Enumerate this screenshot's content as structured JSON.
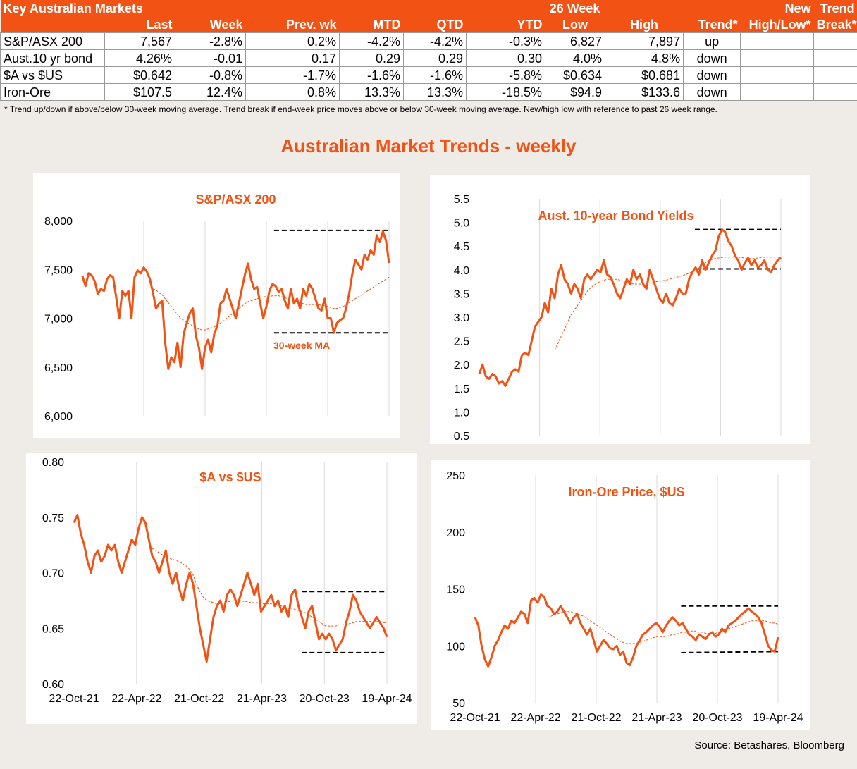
{
  "table": {
    "title": "Key Australian Markets",
    "header2": "26 Week",
    "columns": [
      "Last",
      "Week",
      "Prev. wk",
      "MTD",
      "QTD",
      "YTD",
      "Low",
      "High",
      "Trend*"
    ],
    "new_col": [
      "New",
      "High/Low*"
    ],
    "trend_col": [
      "Trend",
      "Break*"
    ],
    "rows": [
      {
        "name": "S&P/ASX 200",
        "last": "7,567",
        "week": "-2.8%",
        "prev": "0.2%",
        "mtd": "-4.2%",
        "qtd": "-4.2%",
        "ytd": "-0.3%",
        "low": "6,827",
        "high": "7,897",
        "trend": "up",
        "newhl": "",
        "brk": ""
      },
      {
        "name": "Aust.10 yr bond",
        "last": "4.26%",
        "week": "-0.01",
        "prev": "0.17",
        "mtd": "0.29",
        "qtd": "0.29",
        "ytd": "0.30",
        "low": "4.0%",
        "high": "4.8%",
        "trend": "down",
        "newhl": "",
        "brk": ""
      },
      {
        "name": "$A vs $US",
        "last": "$0.642",
        "week": "-0.8%",
        "prev": "-1.7%",
        "mtd": "-1.6%",
        "qtd": "-1.6%",
        "ytd": "-5.8%",
        "low": "$0.634",
        "high": "$0.681",
        "trend": "down",
        "newhl": "",
        "brk": ""
      },
      {
        "name": "Iron-Ore",
        "last": "$107.5",
        "week": "12.4%",
        "prev": "0.8%",
        "mtd": "13.3%",
        "qtd": "13.3%",
        "ytd": "-18.5%",
        "low": "$94.9",
        "high": "$133.6",
        "trend": "down",
        "newhl": "",
        "brk": ""
      }
    ],
    "footnote": "*  Trend up/down if above/below 30-week moving average. Trend break if end-week price moves above or below 30-week moving average.  New/high low with reference to past 26 week range."
  },
  "main_title": "Australian Market Trends - weekly",
  "source": "Source:  Betashares, Bloomberg",
  "colors": {
    "accent": "#f25213",
    "line": "#f25213",
    "band": "#000000"
  },
  "chart_data": [
    {
      "id": "asx",
      "type": "line",
      "title": "S&P/ASX 200",
      "annotation": "30-week MA",
      "ylim": [
        6000,
        8000
      ],
      "yticks": [
        "6,000",
        "6,500",
        "7,000",
        "7,500",
        "8,000"
      ],
      "band": [
        6850,
        7900
      ],
      "series": [
        {
          "values": [
            7430,
            7330,
            7460,
            7440,
            7380,
            7250,
            7300,
            7280,
            7400,
            7440,
            7420,
            7220,
            7000,
            7280,
            7230,
            7280,
            7000,
            7420,
            7490,
            7460,
            7520,
            7480,
            7400,
            7260,
            7100,
            7150,
            7180,
            6750,
            6480,
            6600,
            6550,
            6750,
            6500,
            6840,
            6950,
            7050,
            7100,
            6820,
            6700,
            6480,
            6700,
            6780,
            6650,
            6840,
            6920,
            7150,
            7180,
            7300,
            7200,
            7100,
            7000,
            7150,
            7300,
            7450,
            7560,
            7400,
            7300,
            7320,
            7150,
            7000,
            7120,
            7280,
            7350,
            7330,
            7270,
            7300,
            7180,
            7100,
            7300,
            7150,
            7200,
            7100,
            7300,
            7230,
            7350,
            7300,
            7200,
            7100,
            7080,
            7200,
            7000,
            7000,
            6850,
            6950,
            6980,
            7000,
            7100,
            7250,
            7450,
            7600,
            7550,
            7500,
            7650,
            7600,
            7700,
            7650,
            7850,
            7780,
            7890,
            7800,
            7567
          ]
        },
        {
          "values": [
            null,
            null,
            null,
            null,
            null,
            null,
            null,
            null,
            null,
            null,
            null,
            null,
            null,
            null,
            null,
            null,
            null,
            null,
            null,
            null,
            null,
            null,
            null,
            7300,
            7290,
            7260,
            7240,
            7200,
            7160,
            7120,
            7080,
            7040,
            7000,
            6980,
            6960,
            6940,
            6920,
            6900,
            6890,
            6880,
            6880,
            6890,
            6900,
            6910,
            6930,
            6950,
            6970,
            7000,
            7020,
            7050,
            7080,
            7100,
            7120,
            7150,
            7170,
            7180,
            7190,
            7200,
            7210,
            7220,
            7220,
            7220,
            7230,
            7230,
            7230,
            7220,
            7210,
            7200,
            7190,
            7180,
            7170,
            7160,
            7150,
            7140,
            7140,
            7140,
            7140,
            7140,
            7130,
            7130,
            7120,
            7110,
            7100,
            7100,
            7110,
            7120,
            7140,
            7160,
            7180,
            7200,
            7220,
            7240,
            7260,
            7280,
            7300,
            7320,
            7340,
            7360,
            7380,
            7400,
            7420
          ]
        }
      ]
    },
    {
      "id": "bond",
      "type": "line",
      "title": "Aust. 10-year Bond Yields",
      "ylim": [
        0.5,
        5.5
      ],
      "yticks": [
        "0.5",
        "1.0",
        "1.5",
        "2.0",
        "2.5",
        "3.0",
        "3.5",
        "4.0",
        "4.5",
        "5.0",
        "5.5"
      ],
      "band": [
        4.02,
        4.85
      ],
      "series": [
        {
          "values": [
            1.8,
            2.0,
            1.75,
            1.7,
            1.8,
            1.75,
            1.6,
            1.65,
            1.55,
            1.7,
            1.85,
            1.9,
            1.85,
            2.2,
            2.25,
            2.2,
            2.5,
            2.8,
            2.9,
            3.0,
            3.3,
            3.1,
            3.6,
            3.4,
            3.9,
            4.1,
            3.8,
            3.7,
            3.5,
            3.7,
            3.6,
            3.4,
            3.8,
            3.9,
            3.8,
            3.9,
            4.0,
            3.95,
            4.2,
            3.9,
            3.85,
            3.7,
            3.5,
            3.4,
            3.6,
            3.8,
            3.7,
            4.0,
            3.8,
            3.9,
            3.7,
            3.6,
            4.0,
            3.8,
            3.6,
            3.4,
            3.3,
            3.5,
            3.3,
            3.25,
            3.4,
            3.6,
            3.5,
            3.5,
            3.8,
            3.95,
            4.05,
            3.9,
            4.2,
            4.0,
            4.15,
            4.3,
            4.4,
            4.7,
            4.85,
            4.8,
            4.6,
            4.5,
            4.3,
            4.2,
            4.0,
            4.15,
            4.25,
            4.1,
            4.2,
            4.05,
            4.1,
            4.2,
            4.0,
            3.95,
            4.1,
            4.2,
            4.26
          ]
        },
        {
          "values": [
            null,
            null,
            null,
            null,
            null,
            null,
            null,
            null,
            null,
            null,
            null,
            null,
            null,
            null,
            null,
            null,
            null,
            null,
            null,
            null,
            null,
            null,
            null,
            2.3,
            2.45,
            2.6,
            2.75,
            2.9,
            3.05,
            3.15,
            3.25,
            3.35,
            3.45,
            3.55,
            3.62,
            3.68,
            3.72,
            3.76,
            3.78,
            3.8,
            3.8,
            3.8,
            3.8,
            3.78,
            3.76,
            3.74,
            3.72,
            3.7,
            3.7,
            3.7,
            3.7,
            3.7,
            3.72,
            3.74,
            3.75,
            3.76,
            3.77,
            3.78,
            3.8,
            3.82,
            3.84,
            3.86,
            3.88,
            3.9,
            3.93,
            3.96,
            4.0,
            4.05,
            4.1,
            4.15,
            4.2,
            4.22,
            4.24,
            4.25,
            4.26,
            4.27,
            4.27,
            4.27,
            4.27,
            4.27,
            4.26,
            4.25,
            4.24,
            4.24,
            4.24,
            4.25,
            4.26,
            4.27,
            4.27,
            4.27,
            4.27,
            4.27,
            4.26
          ]
        }
      ]
    },
    {
      "id": "aud",
      "type": "line",
      "title": "$A vs $US",
      "ylim": [
        0.6,
        0.8
      ],
      "yticks": [
        "0.60",
        "0.65",
        "0.70",
        "0.75",
        "0.80"
      ],
      "xticks": [
        "22-Oct-21",
        "22-Apr-22",
        "21-Oct-22",
        "21-Apr-23",
        "20-Oct-23",
        "19-Apr-24"
      ],
      "band": [
        0.628,
        0.683
      ],
      "series": [
        {
          "values": [
            0.745,
            0.752,
            0.735,
            0.725,
            0.71,
            0.7,
            0.715,
            0.72,
            0.71,
            0.715,
            0.725,
            0.72,
            0.725,
            0.71,
            0.7,
            0.71,
            0.72,
            0.73,
            0.725,
            0.74,
            0.75,
            0.745,
            0.73,
            0.715,
            0.71,
            0.7,
            0.71,
            0.72,
            0.7,
            0.69,
            0.7,
            0.685,
            0.675,
            0.69,
            0.7,
            0.69,
            0.67,
            0.65,
            0.635,
            0.62,
            0.64,
            0.66,
            0.67,
            0.675,
            0.665,
            0.68,
            0.685,
            0.68,
            0.67,
            0.68,
            0.69,
            0.7,
            0.69,
            0.68,
            0.69,
            0.665,
            0.67,
            0.675,
            0.68,
            0.67,
            0.675,
            0.665,
            0.67,
            0.66,
            0.68,
            0.685,
            0.67,
            0.66,
            0.65,
            0.665,
            0.67,
            0.655,
            0.64,
            0.645,
            0.64,
            0.645,
            0.64,
            0.63,
            0.635,
            0.64,
            0.655,
            0.665,
            0.68,
            0.675,
            0.665,
            0.66,
            0.655,
            0.65,
            0.655,
            0.66,
            0.655,
            0.65,
            0.642
          ]
        },
        {
          "values": [
            null,
            null,
            null,
            null,
            null,
            null,
            null,
            null,
            null,
            null,
            null,
            null,
            null,
            null,
            null,
            null,
            null,
            null,
            null,
            null,
            null,
            null,
            0.724,
            0.722,
            0.72,
            0.718,
            0.716,
            0.714,
            0.713,
            0.712,
            0.711,
            0.71,
            0.708,
            0.706,
            0.703,
            0.698,
            0.69,
            0.683,
            0.678,
            0.675,
            0.674,
            0.673,
            0.672,
            0.672,
            0.673,
            0.674,
            0.674,
            0.675,
            0.675,
            0.675,
            0.674,
            0.674,
            0.673,
            0.673,
            0.673,
            0.672,
            0.672,
            0.672,
            0.672,
            0.671,
            0.671,
            0.67,
            0.669,
            0.668,
            0.668,
            0.667,
            0.666,
            0.665,
            0.664,
            0.662,
            0.66,
            0.658,
            0.656,
            0.654,
            0.652,
            0.652,
            0.652,
            0.652,
            0.653,
            0.653,
            0.654,
            0.654,
            0.655,
            0.656,
            0.656,
            0.656,
            0.656,
            0.656,
            0.656,
            0.656,
            0.656,
            0.655,
            0.655
          ]
        }
      ]
    },
    {
      "id": "iron",
      "type": "line",
      "title": "Iron-Ore Price, $US",
      "ylim": [
        50,
        250
      ],
      "yticks": [
        "50",
        "100",
        "150",
        "200",
        "250"
      ],
      "xticks": [
        "22-Oct-21",
        "22-Apr-22",
        "21-Oct-22",
        "21-Apr-23",
        "20-Oct-23",
        "19-Apr-24"
      ],
      "band_low": [
        94,
        95
      ],
      "band_high": [
        135,
        135
      ],
      "series": [
        {
          "values": [
            125,
            118,
            100,
            88,
            82,
            90,
            100,
            105,
            112,
            118,
            115,
            122,
            120,
            125,
            130,
            128,
            120,
            140,
            142,
            138,
            145,
            143,
            135,
            133,
            128,
            130,
            135,
            130,
            125,
            120,
            125,
            128,
            120,
            115,
            110,
            115,
            105,
            95,
            100,
            105,
            102,
            98,
            97,
            100,
            92,
            95,
            85,
            83,
            90,
            100,
            105,
            110,
            112,
            115,
            118,
            120,
            117,
            112,
            118,
            122,
            125,
            122,
            118,
            120,
            115,
            110,
            108,
            105,
            110,
            108,
            106,
            110,
            112,
            108,
            110,
            115,
            112,
            118,
            120,
            122,
            125,
            128,
            130,
            133,
            130,
            128,
            125,
            120,
            110,
            100,
            96,
            95,
            107.5
          ]
        },
        {
          "values": [
            null,
            null,
            null,
            null,
            null,
            null,
            null,
            null,
            null,
            null,
            null,
            null,
            null,
            null,
            null,
            null,
            null,
            null,
            null,
            null,
            null,
            null,
            125,
            126,
            127,
            128,
            129,
            130,
            130,
            130,
            129,
            128,
            127,
            126,
            124,
            122,
            120,
            118,
            116,
            114,
            112,
            110,
            108,
            106,
            104,
            103,
            102,
            102,
            102,
            102,
            103,
            104,
            105,
            106,
            107,
            108,
            108,
            108,
            108,
            109,
            110,
            110,
            111,
            112,
            112,
            113,
            113,
            113,
            112,
            112,
            111,
            111,
            111,
            111,
            112,
            113,
            114,
            115,
            116,
            117,
            118,
            119,
            120,
            121,
            122,
            122,
            122,
            122,
            122,
            121,
            120,
            120,
            119
          ]
        }
      ]
    }
  ]
}
